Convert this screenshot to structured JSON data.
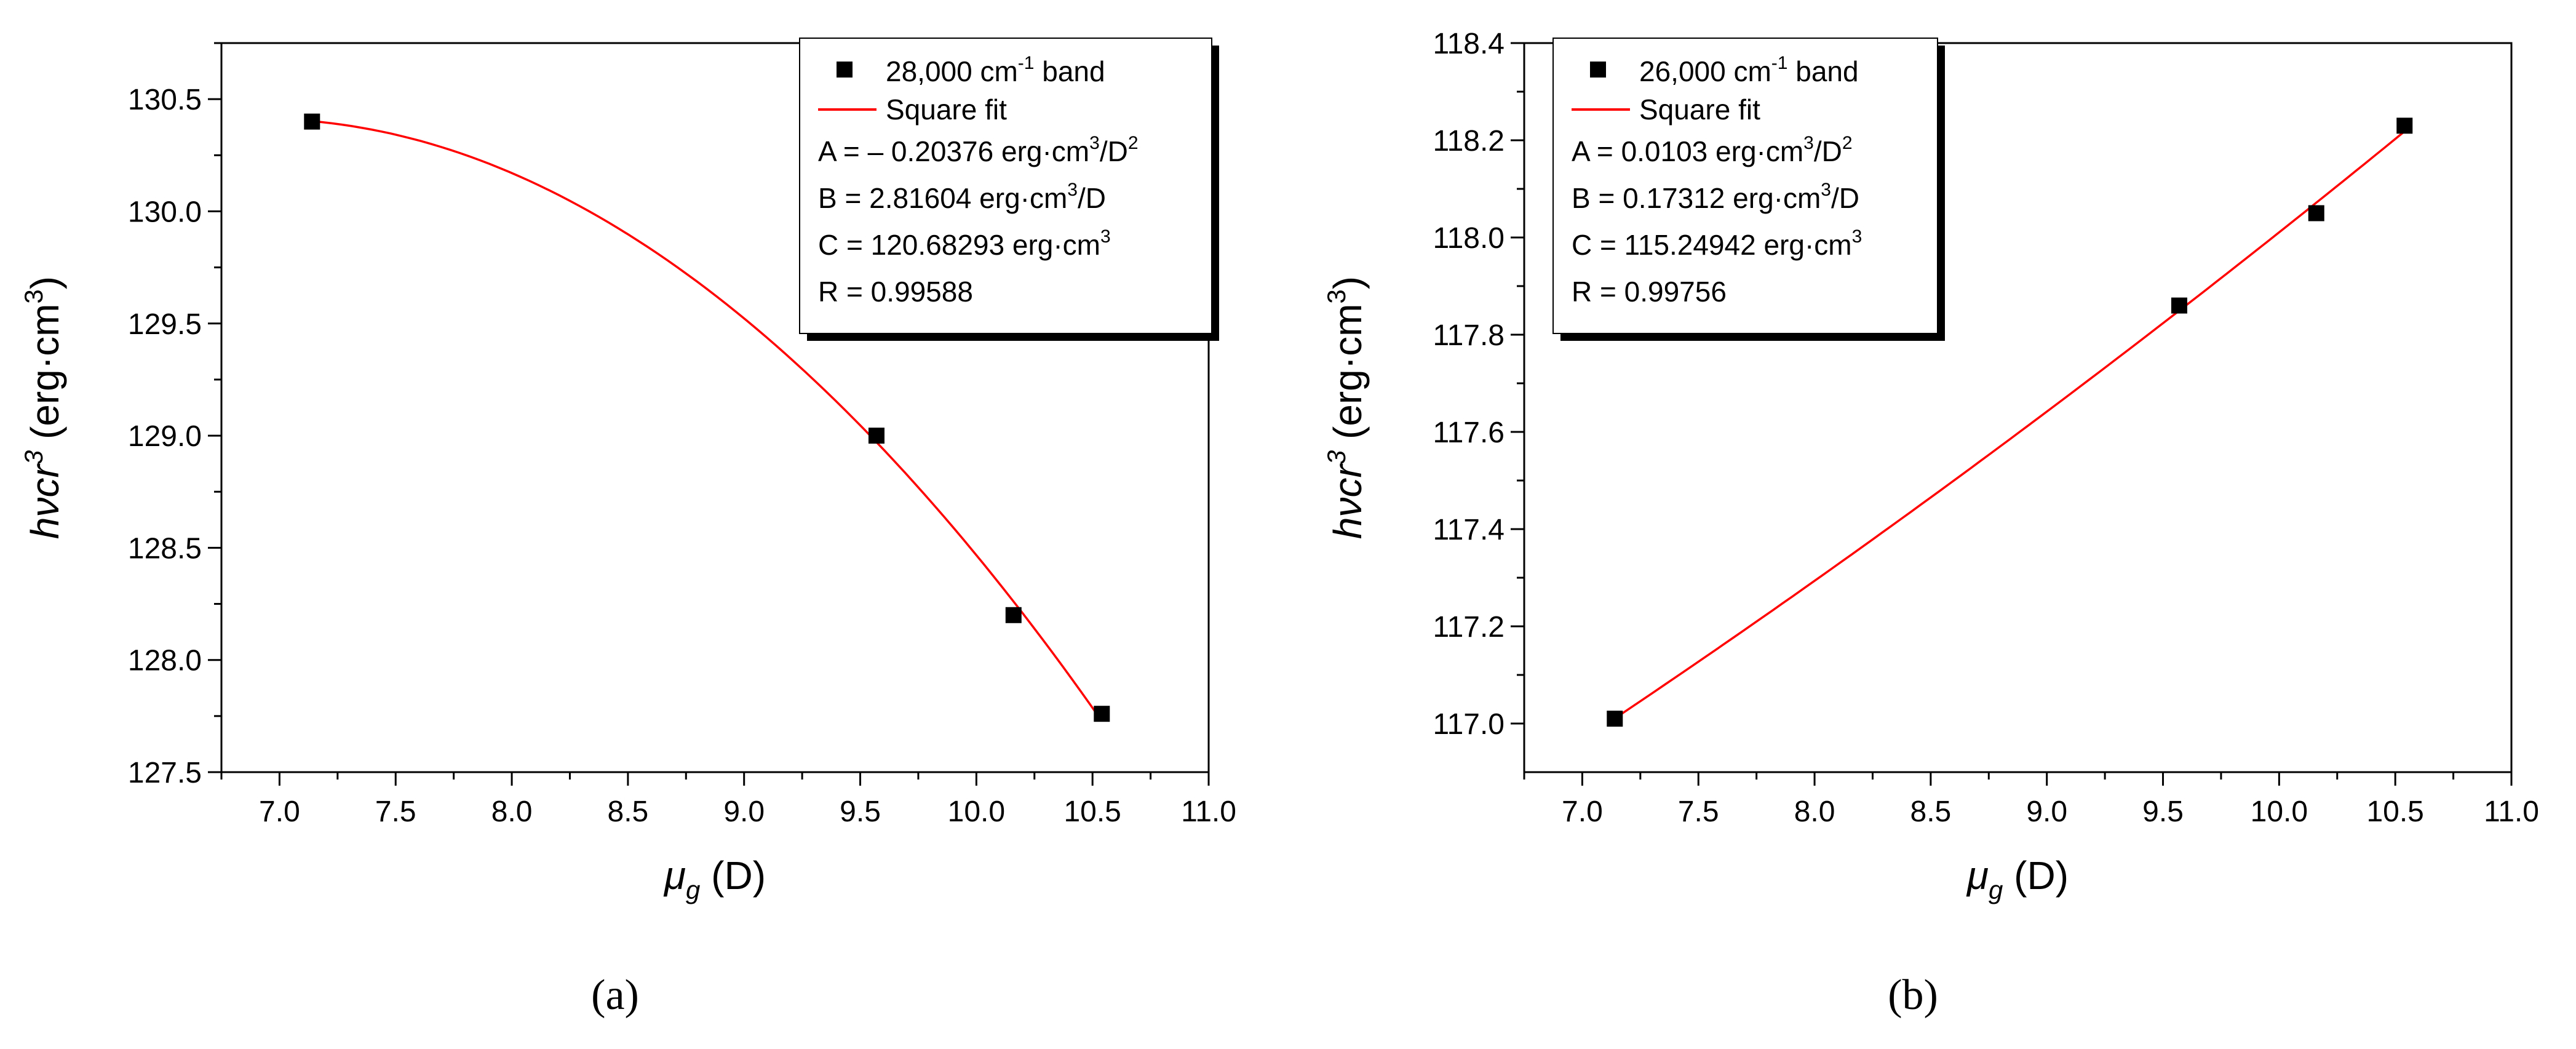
{
  "chart_data": [
    {
      "type": "scatter",
      "panel_label": "a",
      "xlabel": {
        "main": "μ",
        "sub": "g",
        "units": "(D)"
      },
      "ylabel": {
        "main": "hνcr",
        "sup": "3",
        "units": "(erg·cm",
        "units_sup": "3",
        "units_end": ")"
      },
      "xlim": [
        6.75,
        11.0
      ],
      "ylim": [
        127.5,
        130.75
      ],
      "xticks": [
        7.0,
        7.5,
        8.0,
        8.5,
        9.0,
        9.5,
        10.0,
        10.5,
        11.0
      ],
      "xtick_labels": [
        "7.0",
        "7.5",
        "8.0",
        "8.5",
        "9.0",
        "9.5",
        "10.0",
        "10.5",
        "11.0"
      ],
      "yticks": [
        127.5,
        128.0,
        128.5,
        129.0,
        129.5,
        130.0,
        130.5
      ],
      "ytick_labels": [
        "127.5",
        "128.0",
        "128.5",
        "129.0",
        "129.5",
        "130.0",
        "130.5"
      ],
      "series": [
        {
          "name": "28,000 cm-1 band",
          "kind": "points",
          "color": "#000000",
          "x": [
            7.14,
            9.57,
            10.16,
            10.54
          ],
          "y": [
            130.4,
            129.0,
            128.2,
            127.76
          ]
        },
        {
          "name": "Square fit",
          "kind": "fit",
          "color": "#ff0000",
          "coefficients": {
            "A": -0.20376,
            "B": 2.81604,
            "C": 120.68293
          },
          "x_range": [
            7.14,
            10.54
          ]
        }
      ],
      "legend": {
        "placement": "top-right",
        "entries": [
          {
            "text": "28,000 cm",
            "sup": "-1",
            "rest": " band"
          },
          {
            "text": "Square fit"
          }
        ],
        "params": [
          {
            "text": "A = – 0.20376 erg·cm",
            "sup": "3",
            "rest": "/D",
            "sup2": "2"
          },
          {
            "text": "B = 2.81604 erg·cm",
            "sup": "3",
            "rest": "/D"
          },
          {
            "text": "C = 120.68293 erg·cm",
            "sup": "3",
            "rest": ""
          },
          {
            "text": "R = 0.99588"
          }
        ]
      }
    },
    {
      "type": "scatter",
      "panel_label": "b",
      "xlabel": {
        "main": "μ",
        "sub": "g",
        "units": "(D)"
      },
      "ylabel": {
        "main": "hνcr",
        "sup": "3",
        "units": "(erg·cm",
        "units_sup": "3",
        "units_end": ")"
      },
      "xlim": [
        6.75,
        11.0
      ],
      "ylim": [
        116.9,
        118.4
      ],
      "xticks": [
        7.0,
        7.5,
        8.0,
        8.5,
        9.0,
        9.5,
        10.0,
        10.5,
        11.0
      ],
      "xtick_labels": [
        "7.0",
        "7.5",
        "8.0",
        "8.5",
        "9.0",
        "9.5",
        "10.0",
        "10.5",
        "11.0"
      ],
      "yticks": [
        117.0,
        117.2,
        117.4,
        117.6,
        117.8,
        118.0,
        118.2,
        118.4
      ],
      "ytick_labels": [
        "117.0",
        "117.2",
        "117.4",
        "117.6",
        "117.8",
        "118.0",
        "118.2",
        "118.4"
      ],
      "series": [
        {
          "name": "26,000 cm-1 band",
          "kind": "points",
          "color": "#000000",
          "x": [
            7.14,
            9.57,
            10.16,
            10.54
          ],
          "y": [
            117.01,
            117.86,
            118.05,
            118.23
          ]
        },
        {
          "name": "Square fit",
          "kind": "fit",
          "color": "#ff0000",
          "coefficients": {
            "A": 0.0103,
            "B": 0.17312,
            "C": 115.24942
          },
          "x_range": [
            7.14,
            10.54
          ]
        }
      ],
      "legend": {
        "placement": "top-left",
        "entries": [
          {
            "text": "26,000 cm",
            "sup": "-1",
            "rest": " band"
          },
          {
            "text": "Square fit"
          }
        ],
        "params": [
          {
            "text": "A = 0.0103 erg·cm",
            "sup": "3",
            "rest": "/D",
            "sup2": "2"
          },
          {
            "text": "B = 0.17312 erg·cm",
            "sup": "3",
            "rest": "/D"
          },
          {
            "text": "C = 115.24942 erg·cm",
            "sup": "3",
            "rest": ""
          },
          {
            "text": "R = 0.99756"
          }
        ]
      }
    }
  ],
  "captions": [
    "(a)",
    "(b)"
  ]
}
